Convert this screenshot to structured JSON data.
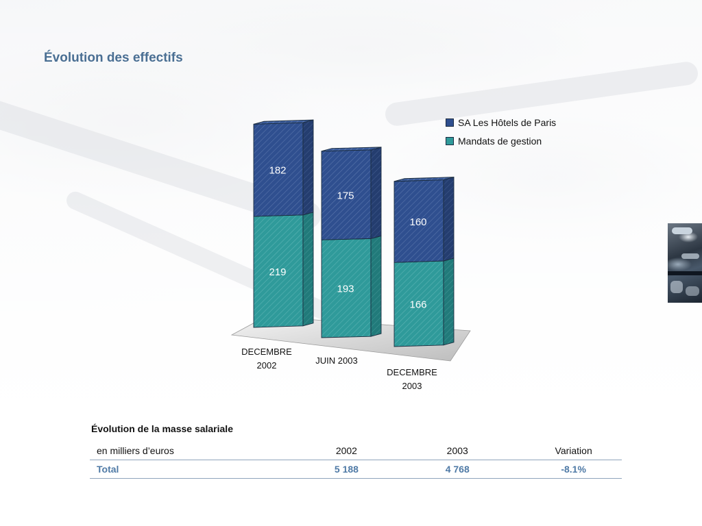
{
  "page": {
    "title": "Évolution des effectifs"
  },
  "legend": [
    {
      "label": "SA Les Hôtels de Paris",
      "color": "#2f4f8f"
    },
    {
      "label": "Mandats de gestion",
      "color": "#2f9a9a"
    }
  ],
  "chart_data": {
    "type": "bar",
    "stacked": true,
    "three_d": true,
    "categories": [
      [
        "DECEMBRE",
        "2002"
      ],
      [
        "JUIN 2003"
      ],
      [
        "DECEMBRE",
        "2003"
      ]
    ],
    "series": [
      {
        "name": "Mandats de gestion",
        "values": [
          219,
          193,
          166
        ],
        "color": "#2f9a9a"
      },
      {
        "name": "SA Les Hôtels de Paris",
        "values": [
          182,
          175,
          160
        ],
        "color": "#2f4f8f"
      }
    ],
    "data_labels": true,
    "legend_position": "top-right",
    "grid": false
  },
  "salary_section": {
    "title": "Évolution de la masse salariale",
    "header": [
      "en milliers d’euros",
      "2002",
      "2003",
      "Variation"
    ],
    "total_row": [
      "Total",
      "5 188",
      "4 768",
      "-8.1%"
    ]
  }
}
